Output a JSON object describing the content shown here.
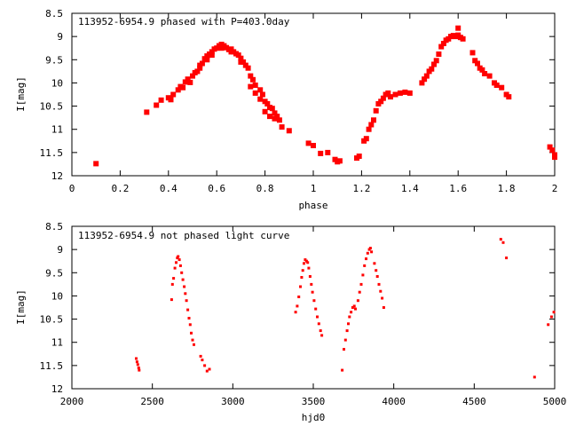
{
  "colors": {
    "points": "#ff0000",
    "axes": "#000000",
    "background": "#ffffff"
  },
  "chart_data": [
    {
      "type": "scatter",
      "title": "113952-6954.9 phased with P=403.0day",
      "xlabel": "phase",
      "ylabel": "I[mag]",
      "xlim": [
        0,
        2
      ],
      "ylim": [
        12,
        8.5
      ],
      "y_inverted": true,
      "grid": false,
      "legend": "none",
      "marker": "filled-square",
      "xticks": [
        "0",
        "0.2",
        "0.4",
        "0.6",
        "0.8",
        "1",
        "1.2",
        "1.4",
        "1.6",
        "1.8",
        "2"
      ],
      "xtick_values": [
        0,
        0.2,
        0.4,
        0.6,
        0.8,
        1.0,
        1.2,
        1.4,
        1.6,
        1.8,
        2.0
      ],
      "yticks": [
        "8.5",
        "9",
        "9.5",
        "10",
        "10.5",
        "11",
        "11.5",
        "12"
      ],
      "ytick_values": [
        8.5,
        9,
        9.5,
        10,
        10.5,
        11,
        11.5,
        12
      ],
      "points": [
        [
          0.1,
          11.74
        ],
        [
          0.31,
          10.63
        ],
        [
          0.35,
          10.48
        ],
        [
          0.37,
          10.37
        ],
        [
          0.4,
          10.32
        ],
        [
          0.41,
          10.36
        ],
        [
          0.42,
          10.25
        ],
        [
          0.44,
          10.15
        ],
        [
          0.45,
          10.08
        ],
        [
          0.46,
          10.1
        ],
        [
          0.47,
          9.98
        ],
        [
          0.48,
          9.92
        ],
        [
          0.49,
          9.99
        ],
        [
          0.5,
          9.85
        ],
        [
          0.51,
          9.78
        ],
        [
          0.52,
          9.75
        ],
        [
          0.53,
          9.62
        ],
        [
          0.54,
          9.58
        ],
        [
          0.55,
          9.48
        ],
        [
          0.56,
          9.42
        ],
        [
          0.57,
          9.38
        ],
        [
          0.58,
          9.33
        ],
        [
          0.59,
          9.27
        ],
        [
          0.6,
          9.25
        ],
        [
          0.61,
          9.2
        ],
        [
          0.62,
          9.17
        ],
        [
          0.63,
          9.2
        ],
        [
          0.64,
          9.24
        ],
        [
          0.65,
          9.28
        ],
        [
          0.66,
          9.27
        ],
        [
          0.67,
          9.33
        ],
        [
          0.68,
          9.37
        ],
        [
          0.69,
          9.4
        ],
        [
          0.7,
          9.47
        ],
        [
          0.71,
          9.55
        ],
        [
          0.72,
          9.62
        ],
        [
          0.73,
          9.68
        ],
        [
          0.74,
          9.85
        ],
        [
          0.75,
          9.93
        ],
        [
          0.76,
          10.05
        ],
        [
          0.78,
          10.15
        ],
        [
          0.79,
          10.25
        ],
        [
          0.8,
          10.4
        ],
        [
          0.81,
          10.45
        ],
        [
          0.82,
          10.53
        ],
        [
          0.83,
          10.55
        ],
        [
          0.84,
          10.65
        ],
        [
          0.85,
          10.72
        ],
        [
          0.86,
          10.8
        ],
        [
          0.87,
          10.95
        ],
        [
          0.9,
          11.03
        ],
        [
          0.74,
          10.08
        ],
        [
          0.76,
          10.22
        ],
        [
          0.78,
          10.35
        ],
        [
          0.8,
          10.62
        ],
        [
          0.82,
          10.72
        ],
        [
          0.84,
          10.77
        ],
        [
          0.53,
          9.68
        ],
        [
          0.56,
          9.5
        ],
        [
          0.58,
          9.4
        ],
        [
          0.62,
          9.25
        ],
        [
          0.66,
          9.33
        ],
        [
          0.7,
          9.55
        ],
        [
          0.98,
          11.3
        ],
        [
          1.0,
          11.35
        ],
        [
          1.03,
          11.52
        ],
        [
          1.06,
          11.5
        ],
        [
          1.09,
          11.65
        ],
        [
          1.1,
          11.7
        ],
        [
          1.11,
          11.68
        ],
        [
          1.18,
          11.62
        ],
        [
          1.19,
          11.58
        ],
        [
          1.21,
          11.25
        ],
        [
          1.22,
          11.2
        ],
        [
          1.23,
          11.0
        ],
        [
          1.24,
          10.9
        ],
        [
          1.25,
          10.8
        ],
        [
          1.26,
          10.6
        ],
        [
          1.27,
          10.45
        ],
        [
          1.28,
          10.4
        ],
        [
          1.29,
          10.33
        ],
        [
          1.3,
          10.25
        ],
        [
          1.31,
          10.22
        ],
        [
          1.32,
          10.3
        ],
        [
          1.34,
          10.25
        ],
        [
          1.36,
          10.22
        ],
        [
          1.38,
          10.2
        ],
        [
          1.4,
          10.22
        ],
        [
          1.45,
          10.0
        ],
        [
          1.46,
          9.92
        ],
        [
          1.47,
          9.85
        ],
        [
          1.48,
          9.75
        ],
        [
          1.49,
          9.7
        ],
        [
          1.5,
          9.6
        ],
        [
          1.51,
          9.52
        ],
        [
          1.52,
          9.38
        ],
        [
          1.53,
          9.22
        ],
        [
          1.54,
          9.15
        ],
        [
          1.55,
          9.08
        ],
        [
          1.56,
          9.05
        ],
        [
          1.57,
          9.0
        ],
        [
          1.58,
          8.98
        ],
        [
          1.59,
          9.0
        ],
        [
          1.6,
          8.97
        ],
        [
          1.61,
          9.02
        ],
        [
          1.62,
          9.05
        ],
        [
          1.6,
          8.82
        ],
        [
          1.66,
          9.35
        ],
        [
          1.67,
          9.52
        ],
        [
          1.68,
          9.58
        ],
        [
          1.69,
          9.68
        ],
        [
          1.7,
          9.72
        ],
        [
          1.71,
          9.8
        ],
        [
          1.73,
          9.85
        ],
        [
          1.75,
          10.0
        ],
        [
          1.76,
          10.05
        ],
        [
          1.78,
          10.1
        ],
        [
          1.8,
          10.25
        ],
        [
          1.81,
          10.3
        ],
        [
          1.98,
          11.38
        ],
        [
          1.99,
          11.45
        ],
        [
          2.0,
          11.55
        ],
        [
          2.0,
          11.6
        ]
      ]
    },
    {
      "type": "scatter",
      "title": "113952-6954.9 not phased light curve",
      "xlabel": "hjd0",
      "ylabel": "I[mag]",
      "xlim": [
        2000,
        5000
      ],
      "ylim": [
        12,
        8.5
      ],
      "y_inverted": true,
      "grid": false,
      "legend": "none",
      "marker": "small-dot",
      "xticks": [
        "2000",
        "2500",
        "3000",
        "3500",
        "4000",
        "4500",
        "5000"
      ],
      "xtick_values": [
        2000,
        2500,
        3000,
        3500,
        4000,
        4500,
        5000
      ],
      "yticks": [
        "8.5",
        "9",
        "9.5",
        "10",
        "10.5",
        "11",
        "11.5",
        "12"
      ],
      "ytick_values": [
        8.5,
        9,
        9.5,
        10,
        10.5,
        11,
        11.5,
        12
      ],
      "points": [
        [
          2400,
          11.35
        ],
        [
          2405,
          11.42
        ],
        [
          2410,
          11.48
        ],
        [
          2415,
          11.55
        ],
        [
          2418,
          11.6
        ],
        [
          2620,
          10.08
        ],
        [
          2625,
          9.75
        ],
        [
          2632,
          9.62
        ],
        [
          2640,
          9.4
        ],
        [
          2648,
          9.28
        ],
        [
          2655,
          9.18
        ],
        [
          2660,
          9.15
        ],
        [
          2668,
          9.22
        ],
        [
          2675,
          9.35
        ],
        [
          2682,
          9.5
        ],
        [
          2690,
          9.65
        ],
        [
          2698,
          9.8
        ],
        [
          2705,
          9.95
        ],
        [
          2712,
          10.1
        ],
        [
          2720,
          10.3
        ],
        [
          2728,
          10.48
        ],
        [
          2735,
          10.62
        ],
        [
          2742,
          10.8
        ],
        [
          2750,
          10.95
        ],
        [
          2758,
          11.05
        ],
        [
          2800,
          11.3
        ],
        [
          2810,
          11.38
        ],
        [
          2825,
          11.5
        ],
        [
          2840,
          11.62
        ],
        [
          2855,
          11.58
        ],
        [
          3390,
          10.35
        ],
        [
          3400,
          10.22
        ],
        [
          3410,
          10.02
        ],
        [
          3420,
          9.8
        ],
        [
          3428,
          9.6
        ],
        [
          3435,
          9.45
        ],
        [
          3442,
          9.3
        ],
        [
          3450,
          9.22
        ],
        [
          3458,
          9.25
        ],
        [
          3465,
          9.28
        ],
        [
          3472,
          9.4
        ],
        [
          3480,
          9.58
        ],
        [
          3488,
          9.75
        ],
        [
          3495,
          9.92
        ],
        [
          3505,
          10.1
        ],
        [
          3515,
          10.28
        ],
        [
          3525,
          10.45
        ],
        [
          3535,
          10.6
        ],
        [
          3545,
          10.75
        ],
        [
          3553,
          10.85
        ],
        [
          3680,
          11.6
        ],
        [
          3690,
          11.15
        ],
        [
          3700,
          10.95
        ],
        [
          3710,
          10.75
        ],
        [
          3718,
          10.6
        ],
        [
          3725,
          10.45
        ],
        [
          3735,
          10.35
        ],
        [
          3745,
          10.25
        ],
        [
          3755,
          10.22
        ],
        [
          3762,
          10.28
        ],
        [
          3778,
          10.1
        ],
        [
          3788,
          9.92
        ],
        [
          3798,
          9.75
        ],
        [
          3808,
          9.55
        ],
        [
          3818,
          9.35
        ],
        [
          3828,
          9.2
        ],
        [
          3838,
          9.08
        ],
        [
          3848,
          9.0
        ],
        [
          3855,
          8.97
        ],
        [
          3862,
          9.05
        ],
        [
          3880,
          9.3
        ],
        [
          3890,
          9.45
        ],
        [
          3898,
          9.58
        ],
        [
          3908,
          9.75
        ],
        [
          3918,
          9.9
        ],
        [
          3928,
          10.05
        ],
        [
          3938,
          10.25
        ],
        [
          4665,
          8.78
        ],
        [
          4680,
          8.85
        ],
        [
          4700,
          9.18
        ],
        [
          4875,
          11.75
        ],
        [
          4960,
          10.62
        ],
        [
          4980,
          10.45
        ],
        [
          4995,
          10.35
        ]
      ]
    }
  ]
}
